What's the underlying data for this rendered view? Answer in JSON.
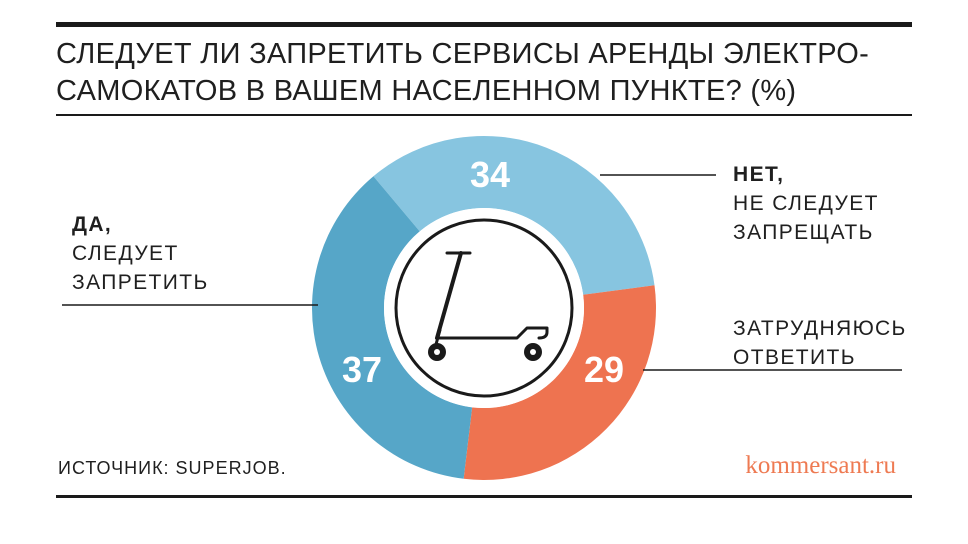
{
  "title": {
    "line1": "СЛЕДУЕТ ЛИ ЗАПРЕТИТЬ СЕРВИСЫ АРЕНДЫ ЭЛЕКТРО-",
    "line2": "САМОКАТОВ В ВАШЕМ НАСЕЛЕННОМ ПУНКТЕ? (%)"
  },
  "labels": {
    "yes_bold": "ДА,",
    "yes_line1": "СЛЕДУЕТ",
    "yes_line2": "ЗАПРЕТИТЬ",
    "no_bold": "НЕТ,",
    "no_line1": "НЕ СЛЕДУЕТ",
    "no_line2": "ЗАПРЕЩАТЬ",
    "hard_line1": "ЗАТРУДНЯЮСЬ",
    "hard_line2": "ОТВЕТИТЬ"
  },
  "source": "ИСТОЧНИК: SUPERJOB.",
  "brand": "kommersant.ru",
  "icons": {
    "center": "scooter-icon"
  },
  "chart_data": {
    "type": "pie",
    "donut": true,
    "unit": "%",
    "slices": [
      {
        "key": "no",
        "value": 34,
        "label": "34",
        "color": "#87c5e0"
      },
      {
        "key": "hard",
        "value": 29,
        "label": "29",
        "color": "#ee7350"
      },
      {
        "key": "yes",
        "value": 37,
        "label": "37",
        "color": "#56a6c8"
      }
    ]
  }
}
